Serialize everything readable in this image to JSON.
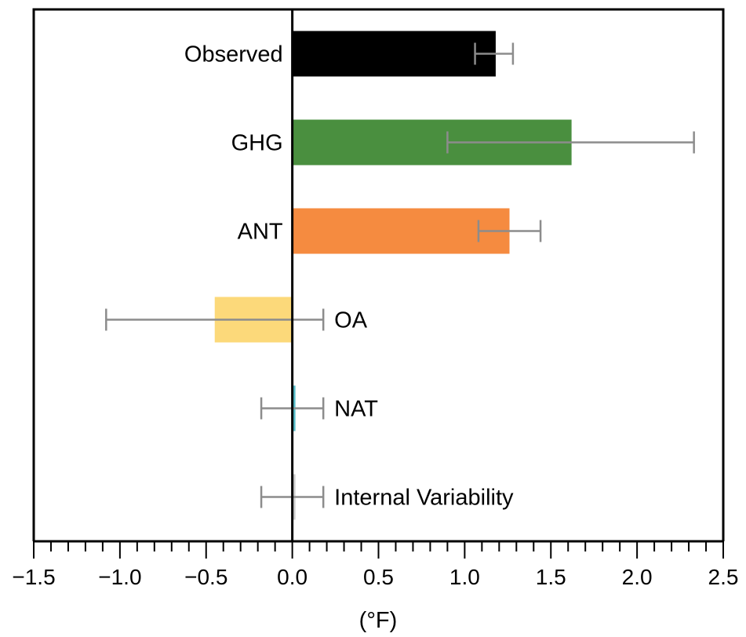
{
  "chart_data": {
    "type": "bar",
    "orientation": "horizontal",
    "title": "",
    "xlabel": "(°F)",
    "ylabel": "",
    "xlim": [
      -1.5,
      2.5
    ],
    "major_ticks": [
      "−1.5",
      "−1.0",
      "−0.5",
      "0.0",
      "0.5",
      "1.0",
      "1.5",
      "2.0",
      "2.5"
    ],
    "minor_tick_step": 0.1,
    "grid": false,
    "legend": "none",
    "categories": [
      "Observed",
      "GHG",
      "ANT",
      "OA",
      "NAT",
      "Internal Variability"
    ],
    "values": [
      1.18,
      1.62,
      1.26,
      -0.45,
      0.0,
      0.0
    ],
    "error_low": [
      1.06,
      0.9,
      1.08,
      -1.08,
      -0.18,
      -0.18
    ],
    "error_high": [
      1.28,
      2.33,
      1.44,
      0.18,
      0.18,
      0.18
    ],
    "colors": [
      "#000000",
      "#4a8f3f",
      "#f58b40",
      "#fcd97a",
      "#56bcc8",
      "#cccccc"
    ],
    "error_bar_color": "#8c8c8c"
  }
}
